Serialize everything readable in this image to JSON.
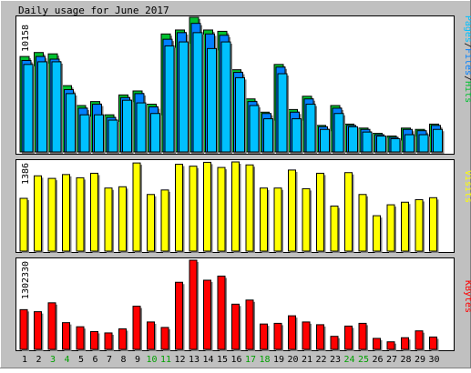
{
  "colors": {
    "background": "#C0C0C0",
    "panel": "#FFFFFF",
    "hits": "#00C030",
    "files": "#0080FF",
    "pages": "#00C0FF",
    "visits": "#FFFF00",
    "kbytes": "#FF0000",
    "weekend_label": "#00A000",
    "weekday_label": "#000000"
  },
  "chart_data": {
    "type": "bar",
    "title": "Daily usage for June 2017",
    "categories": [
      "1",
      "2",
      "3",
      "4",
      "5",
      "6",
      "7",
      "8",
      "9",
      "10",
      "11",
      "12",
      "13",
      "14",
      "15",
      "16",
      "17",
      "18",
      "19",
      "20",
      "21",
      "22",
      "23",
      "24",
      "25",
      "26",
      "27",
      "28",
      "29",
      "30"
    ],
    "weekend_days": [
      "3",
      "4",
      "10",
      "11",
      "17",
      "18",
      "24",
      "25"
    ],
    "panels": [
      {
        "id": "hits-files-pages",
        "max_label": "10158",
        "ylim": [
          0,
          10158
        ],
        "legend": [
          {
            "text": "Pages",
            "color": "#00C0FF"
          },
          {
            "text": "Files",
            "color": "#0080FF"
          },
          {
            "text": "Hits",
            "color": "#00C030"
          }
        ],
        "series": [
          {
            "name": "Hits",
            "values": [
              7200,
              7500,
              7400,
              5000,
              3500,
              3800,
              2800,
              4300,
              4600,
              3600,
              8900,
              9200,
              10158,
              9200,
              9100,
              6200,
              4000,
              3000,
              6600,
              3200,
              4200,
              2000,
              3500,
              2100,
              1800,
              1400,
              1200,
              1800,
              1700,
              2100
            ]
          },
          {
            "name": "Files",
            "values": [
              6900,
              7200,
              7000,
              4700,
              3300,
              3600,
              2600,
              4100,
              4400,
              3400,
              8500,
              9000,
              9700,
              8900,
              8800,
              6000,
              3800,
              2900,
              6400,
              3000,
              4000,
              1900,
              3300,
              2000,
              1700,
              1300,
              1100,
              1700,
              1600,
              2000
            ]
          },
          {
            "name": "Pages",
            "values": [
              6600,
              6800,
              6800,
              4400,
              2800,
              2800,
              2400,
              3900,
              3700,
              2900,
              8000,
              8300,
              9000,
              7800,
              8300,
              5600,
              3500,
              2500,
              5900,
              2500,
              3600,
              1700,
              2900,
              1900,
              1500,
              1200,
              1000,
              1300,
              1300,
              1700
            ]
          }
        ]
      },
      {
        "id": "visits",
        "max_label": "1386",
        "ylim": [
          0,
          1386
        ],
        "legend": [
          {
            "text": "Visits",
            "color": "#FFFF00"
          }
        ],
        "series": [
          {
            "name": "Visits",
            "values": [
              820,
              1170,
              1130,
              1190,
              1140,
              1210,
              980,
              1000,
              1370,
              880,
              950,
              1350,
              1320,
              1380,
              1300,
              1386,
              1340,
              980,
              980,
              1260,
              970,
              1210,
              700,
              1220,
              880,
              550,
              720,
              760,
              800,
              830
            ]
          }
        ]
      },
      {
        "id": "kbytes",
        "max_label": "1302330",
        "ylim": [
          0,
          1302330
        ],
        "legend": [
          {
            "text": "KBytes",
            "color": "#FF0000"
          }
        ],
        "series": [
          {
            "name": "KBytes",
            "values": [
              580000,
              550000,
              680000,
              390000,
              330000,
              260000,
              240000,
              300000,
              630000,
              400000,
              320000,
              980000,
              1302330,
              1010000,
              1070000,
              660000,
              720000,
              370000,
              380000,
              490000,
              400000,
              360000,
              190000,
              340000,
              380000,
              160000,
              110000,
              170000,
              270000,
              180000
            ]
          }
        ]
      }
    ]
  }
}
